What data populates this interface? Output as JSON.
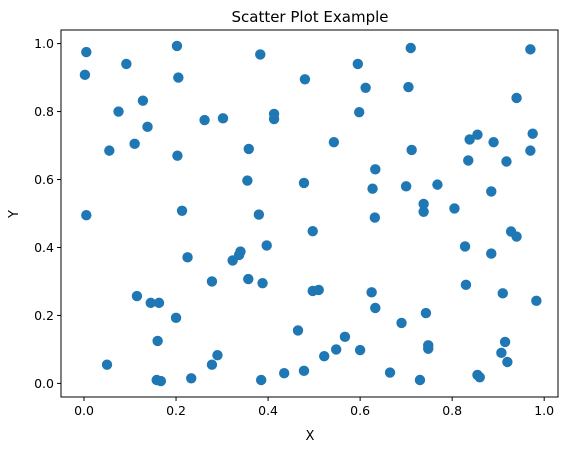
{
  "chart_data": {
    "type": "scatter",
    "title": "Scatter Plot Example",
    "xlabel": "X",
    "ylabel": "Y",
    "xlim": [
      -0.05,
      1.03
    ],
    "ylim": [
      -0.04,
      1.04
    ],
    "xticks": [
      "0.0",
      "0.2",
      "0.4",
      "0.6",
      "0.8",
      "1.0"
    ],
    "yticks": [
      "0.0",
      "0.2",
      "0.4",
      "0.6",
      "0.8",
      "1.0"
    ],
    "grid": false,
    "marker_color": "#1f77b4",
    "points": [
      {
        "x": 0.005,
        "y": 0.975
      },
      {
        "x": 0.002,
        "y": 0.908
      },
      {
        "x": 0.092,
        "y": 0.94
      },
      {
        "x": 0.075,
        "y": 0.8
      },
      {
        "x": 0.128,
        "y": 0.832
      },
      {
        "x": 0.138,
        "y": 0.755
      },
      {
        "x": 0.11,
        "y": 0.705
      },
      {
        "x": 0.055,
        "y": 0.685
      },
      {
        "x": 0.005,
        "y": 0.495
      },
      {
        "x": 0.202,
        "y": 0.993
      },
      {
        "x": 0.205,
        "y": 0.9
      },
      {
        "x": 0.262,
        "y": 0.775
      },
      {
        "x": 0.302,
        "y": 0.78
      },
      {
        "x": 0.203,
        "y": 0.67
      },
      {
        "x": 0.213,
        "y": 0.508
      },
      {
        "x": 0.383,
        "y": 0.968
      },
      {
        "x": 0.413,
        "y": 0.793
      },
      {
        "x": 0.413,
        "y": 0.778
      },
      {
        "x": 0.358,
        "y": 0.69
      },
      {
        "x": 0.355,
        "y": 0.597
      },
      {
        "x": 0.38,
        "y": 0.497
      },
      {
        "x": 0.48,
        "y": 0.895
      },
      {
        "x": 0.543,
        "y": 0.71
      },
      {
        "x": 0.478,
        "y": 0.59
      },
      {
        "x": 0.497,
        "y": 0.448
      },
      {
        "x": 0.595,
        "y": 0.94
      },
      {
        "x": 0.612,
        "y": 0.87
      },
      {
        "x": 0.598,
        "y": 0.798
      },
      {
        "x": 0.633,
        "y": 0.63
      },
      {
        "x": 0.627,
        "y": 0.573
      },
      {
        "x": 0.632,
        "y": 0.488
      },
      {
        "x": 0.71,
        "y": 0.987
      },
      {
        "x": 0.705,
        "y": 0.872
      },
      {
        "x": 0.712,
        "y": 0.687
      },
      {
        "x": 0.7,
        "y": 0.58
      },
      {
        "x": 0.768,
        "y": 0.585
      },
      {
        "x": 0.738,
        "y": 0.528
      },
      {
        "x": 0.738,
        "y": 0.505
      },
      {
        "x": 0.805,
        "y": 0.515
      },
      {
        "x": 0.97,
        "y": 0.983
      },
      {
        "x": 0.94,
        "y": 0.84
      },
      {
        "x": 0.838,
        "y": 0.718
      },
      {
        "x": 0.855,
        "y": 0.732
      },
      {
        "x": 0.89,
        "y": 0.71
      },
      {
        "x": 0.975,
        "y": 0.735
      },
      {
        "x": 0.835,
        "y": 0.656
      },
      {
        "x": 0.918,
        "y": 0.653
      },
      {
        "x": 0.97,
        "y": 0.685
      },
      {
        "x": 0.885,
        "y": 0.565
      },
      {
        "x": 0.828,
        "y": 0.403
      },
      {
        "x": 0.885,
        "y": 0.382
      },
      {
        "x": 0.928,
        "y": 0.447
      },
      {
        "x": 0.94,
        "y": 0.432
      },
      {
        "x": 0.225,
        "y": 0.371
      },
      {
        "x": 0.115,
        "y": 0.257
      },
      {
        "x": 0.145,
        "y": 0.237
      },
      {
        "x": 0.163,
        "y": 0.237
      },
      {
        "x": 0.2,
        "y": 0.193
      },
      {
        "x": 0.16,
        "y": 0.125
      },
      {
        "x": 0.05,
        "y": 0.055
      },
      {
        "x": 0.158,
        "y": 0.01
      },
      {
        "x": 0.167,
        "y": 0.007
      },
      {
        "x": 0.233,
        "y": 0.015
      },
      {
        "x": 0.278,
        "y": 0.3
      },
      {
        "x": 0.29,
        "y": 0.083
      },
      {
        "x": 0.278,
        "y": 0.055
      },
      {
        "x": 0.323,
        "y": 0.362
      },
      {
        "x": 0.337,
        "y": 0.378
      },
      {
        "x": 0.34,
        "y": 0.388
      },
      {
        "x": 0.397,
        "y": 0.406
      },
      {
        "x": 0.357,
        "y": 0.307
      },
      {
        "x": 0.388,
        "y": 0.295
      },
      {
        "x": 0.385,
        "y": 0.01
      },
      {
        "x": 0.497,
        "y": 0.272
      },
      {
        "x": 0.51,
        "y": 0.275
      },
      {
        "x": 0.465,
        "y": 0.156
      },
      {
        "x": 0.435,
        "y": 0.03
      },
      {
        "x": 0.478,
        "y": 0.037
      },
      {
        "x": 0.567,
        "y": 0.137
      },
      {
        "x": 0.548,
        "y": 0.1
      },
      {
        "x": 0.522,
        "y": 0.08
      },
      {
        "x": 0.6,
        "y": 0.098
      },
      {
        "x": 0.625,
        "y": 0.268
      },
      {
        "x": 0.633,
        "y": 0.222
      },
      {
        "x": 0.69,
        "y": 0.178
      },
      {
        "x": 0.665,
        "y": 0.032
      },
      {
        "x": 0.73,
        "y": 0.01
      },
      {
        "x": 0.743,
        "y": 0.207
      },
      {
        "x": 0.748,
        "y": 0.112
      },
      {
        "x": 0.748,
        "y": 0.102
      },
      {
        "x": 0.83,
        "y": 0.29
      },
      {
        "x": 0.91,
        "y": 0.265
      },
      {
        "x": 0.915,
        "y": 0.122
      },
      {
        "x": 0.907,
        "y": 0.09
      },
      {
        "x": 0.92,
        "y": 0.063
      },
      {
        "x": 0.855,
        "y": 0.025
      },
      {
        "x": 0.86,
        "y": 0.018
      },
      {
        "x": 0.983,
        "y": 0.243
      }
    ]
  }
}
